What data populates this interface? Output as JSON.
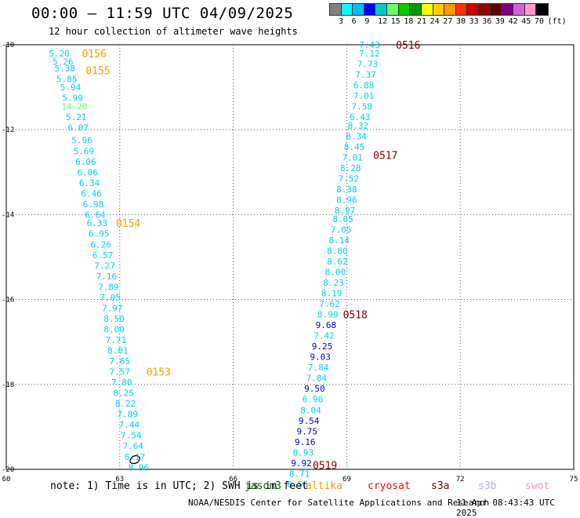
{
  "header": {
    "title": "00:00 – 11:59 UTC 04/09/2025",
    "subtitle": "12 hour collection of altimeter wave heights"
  },
  "legend": {
    "colors": [
      "#808080",
      "#00ffff",
      "#00bfff",
      "#0000ff",
      "#00c8c8",
      "#66ff66",
      "#00cc00",
      "#009900",
      "#ffff00",
      "#ffcc00",
      "#ff9900",
      "#ff3300",
      "#cc0000",
      "#990000",
      "#660000",
      "#800080",
      "#cc66cc",
      "#ff99cc",
      "#000000"
    ],
    "labels": [
      "3",
      "6",
      "9",
      "12",
      "15",
      "18",
      "21",
      "24",
      "27",
      "30",
      "33",
      "36",
      "39",
      "42",
      "45",
      "70",
      "(ft)"
    ]
  },
  "map": {
    "x_ticks": [
      "60",
      "63",
      "66",
      "69",
      "72",
      "75"
    ],
    "y_ticks": [
      "-10",
      "-12",
      "-14",
      "-16",
      "-18",
      "-20"
    ],
    "x_range": [
      60,
      75
    ],
    "y_range": [
      -20,
      -10
    ]
  },
  "tracks": [
    {
      "name": "left",
      "points": [
        {
          "lon": 61.4,
          "lat": -10.2,
          "v": "5.20",
          "c": "#00ccff"
        },
        {
          "lon": 61.5,
          "lat": -10.4,
          "v": "5.26",
          "c": "#00ccff"
        },
        {
          "lon": 61.55,
          "lat": -10.55,
          "v": "5.38",
          "c": "#00ccff"
        },
        {
          "lon": 61.6,
          "lat": -10.8,
          "v": "5.85",
          "c": "#00ccff"
        },
        {
          "lon": 61.7,
          "lat": -11.0,
          "v": "5.94",
          "c": "#00ccff"
        },
        {
          "lon": 61.75,
          "lat": -11.25,
          "v": "5.99",
          "c": "#00ccff"
        },
        {
          "lon": 61.8,
          "lat": -11.45,
          "v": "14.20",
          "c": "#66ff66"
        },
        {
          "lon": 61.85,
          "lat": -11.7,
          "v": "5.21",
          "c": "#00ccff"
        },
        {
          "lon": 61.9,
          "lat": -11.95,
          "v": "6.07",
          "c": "#00ccff"
        },
        {
          "lon": 62.0,
          "lat": -12.25,
          "v": "5.96",
          "c": "#00ccff"
        },
        {
          "lon": 62.05,
          "lat": -12.5,
          "v": "5.69",
          "c": "#00ccff"
        },
        {
          "lon": 62.1,
          "lat": -12.75,
          "v": "6.06",
          "c": "#00ccff"
        },
        {
          "lon": 62.15,
          "lat": -13.0,
          "v": "6.06",
          "c": "#00ccff"
        },
        {
          "lon": 62.2,
          "lat": -13.25,
          "v": "6.34",
          "c": "#00ccff"
        },
        {
          "lon": 62.25,
          "lat": -13.5,
          "v": "6.46",
          "c": "#00ccff"
        },
        {
          "lon": 62.3,
          "lat": -13.75,
          "v": "6.98",
          "c": "#00ccff"
        },
        {
          "lon": 62.35,
          "lat": -14.0,
          "v": "6.64",
          "c": "#00ccff"
        },
        {
          "lon": 62.4,
          "lat": -14.2,
          "v": "6.33",
          "c": "#00ccff"
        },
        {
          "lon": 62.45,
          "lat": -14.45,
          "v": "6.95",
          "c": "#00ccff"
        },
        {
          "lon": 62.5,
          "lat": -14.7,
          "v": "6.26",
          "c": "#00ccff"
        },
        {
          "lon": 62.55,
          "lat": -14.95,
          "v": "6.57",
          "c": "#00ccff"
        },
        {
          "lon": 62.6,
          "lat": -15.2,
          "v": "7.27",
          "c": "#00ccff"
        },
        {
          "lon": 62.65,
          "lat": -15.45,
          "v": "7.16",
          "c": "#00ccff"
        },
        {
          "lon": 62.7,
          "lat": -15.7,
          "v": "7.89",
          "c": "#00ccff"
        },
        {
          "lon": 62.75,
          "lat": -15.95,
          "v": "7.05",
          "c": "#00ccff"
        },
        {
          "lon": 62.8,
          "lat": -16.2,
          "v": "7.97",
          "c": "#00ccff"
        },
        {
          "lon": 62.85,
          "lat": -16.45,
          "v": "8.50",
          "c": "#00ccff"
        },
        {
          "lon": 62.85,
          "lat": -16.7,
          "v": "8.00",
          "c": "#00ccff"
        },
        {
          "lon": 62.9,
          "lat": -16.95,
          "v": "7.71",
          "c": "#00ccff"
        },
        {
          "lon": 62.95,
          "lat": -17.2,
          "v": "8.01",
          "c": "#00ccff"
        },
        {
          "lon": 63.0,
          "lat": -17.45,
          "v": "7.65",
          "c": "#00ccff"
        },
        {
          "lon": 63.0,
          "lat": -17.7,
          "v": "7.57",
          "c": "#00ccff"
        },
        {
          "lon": 63.05,
          "lat": -17.95,
          "v": "7.80",
          "c": "#00ccff"
        },
        {
          "lon": 63.1,
          "lat": -18.2,
          "v": "8.25",
          "c": "#00ccff"
        },
        {
          "lon": 63.15,
          "lat": -18.45,
          "v": "8.22",
          "c": "#00ccff"
        },
        {
          "lon": 63.2,
          "lat": -18.7,
          "v": "7.89",
          "c": "#00ccff"
        },
        {
          "lon": 63.25,
          "lat": -18.95,
          "v": "7.44",
          "c": "#00ccff"
        },
        {
          "lon": 63.3,
          "lat": -19.2,
          "v": "7.54",
          "c": "#00ccff"
        },
        {
          "lon": 63.35,
          "lat": -19.45,
          "v": "7.64",
          "c": "#00ccff"
        },
        {
          "lon": 63.4,
          "lat": -19.7,
          "v": "6.17",
          "c": "#00ccff"
        },
        {
          "lon": 63.5,
          "lat": -19.95,
          "v": "8.96",
          "c": "#00ccff"
        }
      ]
    },
    {
      "name": "right",
      "points": [
        {
          "lon": 69.6,
          "lat": -10.0,
          "v": "7.43",
          "c": "#00ccff"
        },
        {
          "lon": 69.6,
          "lat": -10.2,
          "v": "7.12",
          "c": "#00ccff"
        },
        {
          "lon": 69.55,
          "lat": -10.45,
          "v": "7.73",
          "c": "#00ccff"
        },
        {
          "lon": 69.5,
          "lat": -10.7,
          "v": "7.37",
          "c": "#00ccff"
        },
        {
          "lon": 69.45,
          "lat": -10.95,
          "v": "6.88",
          "c": "#00ccff"
        },
        {
          "lon": 69.45,
          "lat": -11.2,
          "v": "7.01",
          "c": "#00ccff"
        },
        {
          "lon": 69.4,
          "lat": -11.45,
          "v": "7.58",
          "c": "#00ccff"
        },
        {
          "lon": 69.35,
          "lat": -11.7,
          "v": "6.43",
          "c": "#00ccff"
        },
        {
          "lon": 69.3,
          "lat": -11.9,
          "v": "8.32",
          "c": "#00ccff"
        },
        {
          "lon": 69.25,
          "lat": -12.15,
          "v": "8.34",
          "c": "#00ccff"
        },
        {
          "lon": 69.2,
          "lat": -12.4,
          "v": "8.45",
          "c": "#00ccff"
        },
        {
          "lon": 69.15,
          "lat": -12.65,
          "v": "7.01",
          "c": "#00ccff"
        },
        {
          "lon": 69.1,
          "lat": -12.9,
          "v": "8.28",
          "c": "#00ccff"
        },
        {
          "lon": 69.05,
          "lat": -13.15,
          "v": "7.52",
          "c": "#00ccff"
        },
        {
          "lon": 69.0,
          "lat": -13.4,
          "v": "8.38",
          "c": "#00ccff"
        },
        {
          "lon": 69.0,
          "lat": -13.65,
          "v": "8.96",
          "c": "#00ccff"
        },
        {
          "lon": 68.95,
          "lat": -13.9,
          "v": "8.97",
          "c": "#00ccff"
        },
        {
          "lon": 68.9,
          "lat": -14.1,
          "v": "8.05",
          "c": "#00ccff"
        },
        {
          "lon": 68.85,
          "lat": -14.35,
          "v": "7.05",
          "c": "#00ccff"
        },
        {
          "lon": 68.8,
          "lat": -14.6,
          "v": "8.14",
          "c": "#00ccff"
        },
        {
          "lon": 68.75,
          "lat": -14.85,
          "v": "8.80",
          "c": "#00ccff"
        },
        {
          "lon": 68.75,
          "lat": -15.1,
          "v": "8.62",
          "c": "#00ccff"
        },
        {
          "lon": 68.7,
          "lat": -15.35,
          "v": "8.00",
          "c": "#00ccff"
        },
        {
          "lon": 68.65,
          "lat": -15.6,
          "v": "8.23",
          "c": "#00ccff"
        },
        {
          "lon": 68.6,
          "lat": -15.85,
          "v": "8.19",
          "c": "#00ccff"
        },
        {
          "lon": 68.55,
          "lat": -16.1,
          "v": "7.62",
          "c": "#00ccff"
        },
        {
          "lon": 68.5,
          "lat": -16.35,
          "v": "8.99",
          "c": "#00ccff"
        },
        {
          "lon": 68.45,
          "lat": -16.6,
          "v": "9.68",
          "c": "#0000cc"
        },
        {
          "lon": 68.4,
          "lat": -16.85,
          "v": "7.42",
          "c": "#00ccff"
        },
        {
          "lon": 68.35,
          "lat": -17.1,
          "v": "9.25",
          "c": "#0000cc"
        },
        {
          "lon": 68.3,
          "lat": -17.35,
          "v": "9.03",
          "c": "#0000cc"
        },
        {
          "lon": 68.25,
          "lat": -17.6,
          "v": "7.84",
          "c": "#00ccff"
        },
        {
          "lon": 68.2,
          "lat": -17.85,
          "v": "7.84",
          "c": "#00ccff"
        },
        {
          "lon": 68.15,
          "lat": -18.1,
          "v": "9.50",
          "c": "#0000cc"
        },
        {
          "lon": 68.1,
          "lat": -18.35,
          "v": "6.96",
          "c": "#00ccff"
        },
        {
          "lon": 68.05,
          "lat": -18.6,
          "v": "8.04",
          "c": "#00ccff"
        },
        {
          "lon": 68.0,
          "lat": -18.85,
          "v": "9.54",
          "c": "#0000cc"
        },
        {
          "lon": 67.95,
          "lat": -19.1,
          "v": "9.75",
          "c": "#0000cc"
        },
        {
          "lon": 67.9,
          "lat": -19.35,
          "v": "9.16",
          "c": "#0000cc"
        },
        {
          "lon": 67.85,
          "lat": -19.6,
          "v": "8.93",
          "c": "#00ccff"
        },
        {
          "lon": 67.8,
          "lat": -19.85,
          "v": "9.92",
          "c": "#0000cc"
        },
        {
          "lon": 67.75,
          "lat": -20.1,
          "v": "8.71",
          "c": "#00ccff"
        },
        {
          "lon": 67.7,
          "lat": -20.35,
          "v": "8.56",
          "c": "#00ccff"
        }
      ]
    }
  ],
  "time_labels": [
    {
      "lon": 62.0,
      "lat": -10.2,
      "t": "0156",
      "c": "#ff9900"
    },
    {
      "lon": 62.1,
      "lat": -10.6,
      "t": "0155",
      "c": "#ff9900"
    },
    {
      "lon": 62.9,
      "lat": -14.2,
      "t": "0154",
      "c": "#ff9900"
    },
    {
      "lon": 63.7,
      "lat": -17.7,
      "t": "0153",
      "c": "#ff9900"
    },
    {
      "lon": 70.3,
      "lat": -10.0,
      "t": "0516",
      "c": "#800000"
    },
    {
      "lon": 69.7,
      "lat": -12.6,
      "t": "0517",
      "c": "#800000"
    },
    {
      "lon": 68.9,
      "lat": -16.35,
      "t": "0518",
      "c": "#800000"
    },
    {
      "lon": 68.1,
      "lat": -19.9,
      "t": "0519",
      "c": "#800000"
    }
  ],
  "land": [
    {
      "name": "island",
      "lon": 63.4,
      "lat": -19.75
    }
  ],
  "note": "note: 1) Time is in UTC; 2) SWH is in feet",
  "satellites": [
    {
      "name": "jason3",
      "color": "#006600"
    },
    {
      "name": "altika",
      "color": "#ff9900"
    },
    {
      "name": "cryosat",
      "color": "#ff0000"
    },
    {
      "name": "s3a",
      "color": "#800000"
    },
    {
      "name": "s3b",
      "color": "#b3a6ff"
    },
    {
      "name": "swot",
      "color": "#ff99cc"
    }
  ],
  "footer": {
    "credit": "NOAA/NESDIS Center for Satellite Applications and Research",
    "timestamp": "11 Apr 08:43:43 UTC 2025"
  }
}
